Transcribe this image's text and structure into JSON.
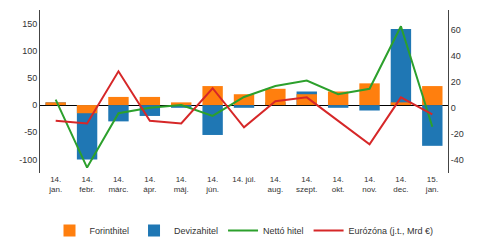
{
  "chart_data": {
    "type": "bar",
    "categories": [
      "14.\njan.",
      "14.\nfebr.",
      "14.\nmárc.",
      "14.\nápr.",
      "14.\nmáj.",
      "14.\njún.",
      "14. júl.",
      "14.\naug.",
      "14.\nszept.",
      "14.\nokt.",
      "14.\nnov.",
      "14.\ndec.",
      "15.\njan."
    ],
    "series": [
      {
        "name": "Forinthitel",
        "type": "bar",
        "values": [
          5,
          -15,
          15,
          15,
          5,
          35,
          20,
          30,
          20,
          25,
          40,
          5,
          35
        ]
      },
      {
        "name": "Devizahitel",
        "type": "bar",
        "values": [
          5,
          -100,
          -30,
          -20,
          -5,
          -55,
          -5,
          5,
          25,
          -5,
          -10,
          140,
          -75
        ]
      },
      {
        "name": "Nettó hitel",
        "type": "line",
        "values": [
          10,
          -115,
          -15,
          -5,
          0,
          -20,
          15,
          35,
          45,
          20,
          30,
          145,
          -40
        ]
      },
      {
        "name": "Eurózóna (j.t., Mrd €)",
        "type": "line",
        "axis": "y2",
        "values": [
          -10,
          -12,
          28,
          -10,
          -12,
          15,
          -15,
          5,
          8,
          -10,
          -28,
          8,
          -5
        ]
      }
    ],
    "ylim": [
      -125,
      175
    ],
    "yticks": [
      -100,
      -50,
      0,
      50,
      100,
      150
    ],
    "y2lim": [
      -50,
      75
    ],
    "y2ticks": [
      -40,
      -20,
      0,
      20,
      40,
      60
    ],
    "grid": false,
    "legend": "bottom"
  }
}
